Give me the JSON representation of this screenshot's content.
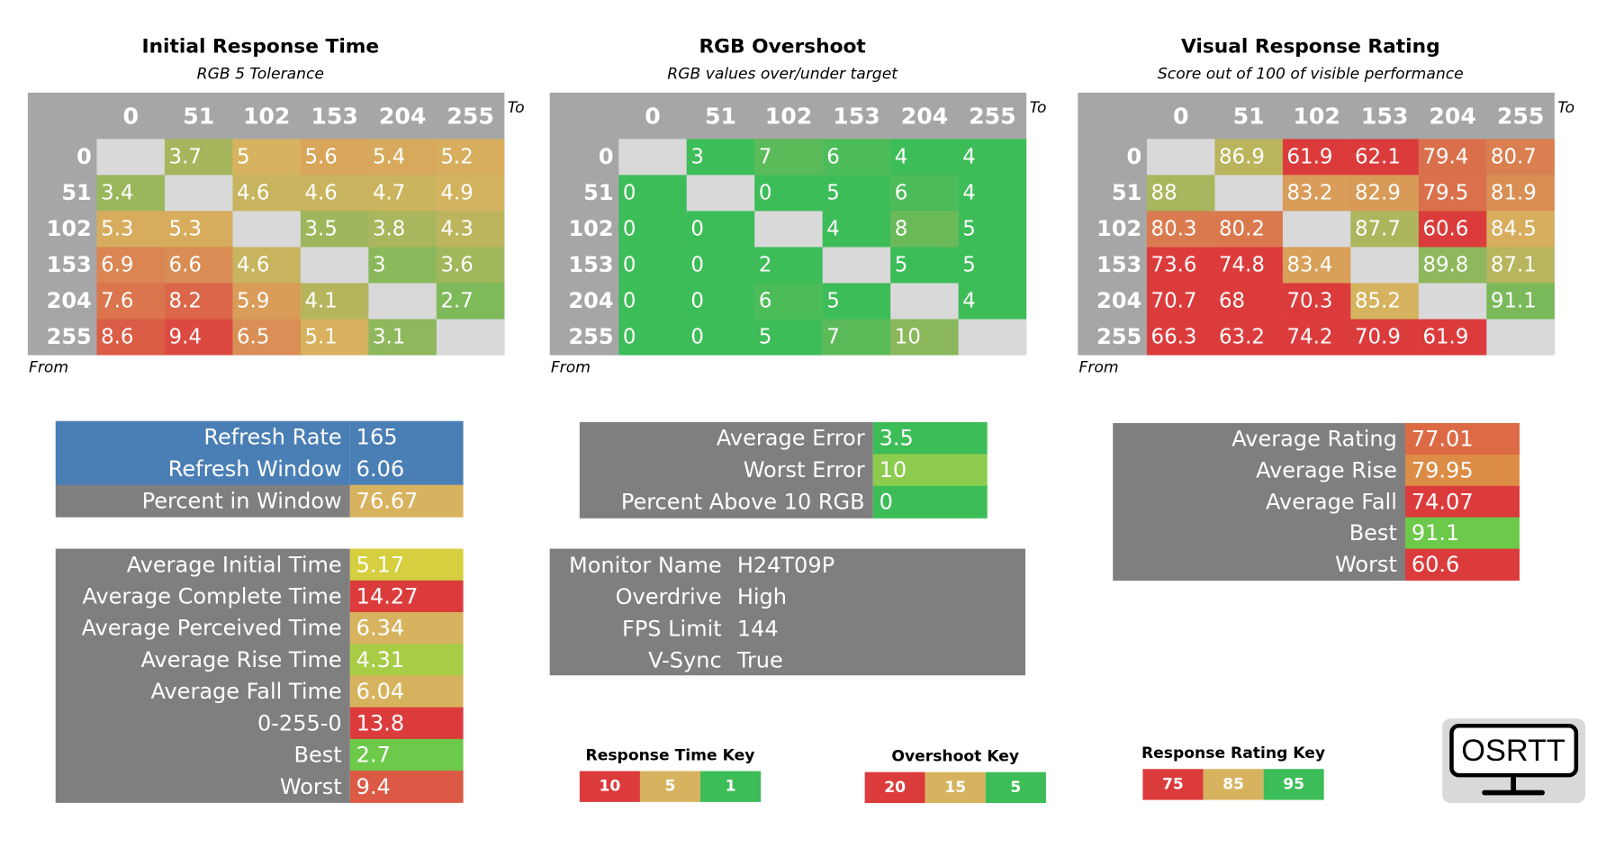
{
  "heatmaps": [
    {
      "title": "Initial Response Time",
      "subtitle": "RGB 5 Tolerance",
      "to": "To",
      "from": "From",
      "columns": [
        0,
        51,
        102,
        153,
        204,
        255
      ],
      "rows": [
        0,
        51,
        102,
        153,
        204,
        255
      ],
      "cells": [
        [
          null,
          3.7,
          5,
          5.6,
          5.4,
          5.2
        ],
        [
          3.4,
          null,
          4.6,
          4.6,
          4.7,
          4.9
        ],
        [
          5.3,
          5.3,
          null,
          3.5,
          3.8,
          4.3
        ],
        [
          6.9,
          6.6,
          4.6,
          null,
          3,
          3.6
        ],
        [
          7.6,
          8.2,
          5.9,
          4.1,
          null,
          2.7
        ],
        [
          8.6,
          9.4,
          6.5,
          5.1,
          3.1,
          null
        ]
      ],
      "key": {
        "title": "Response Time Key",
        "items": [
          {
            "value": 10,
            "color": "#dc3b3c"
          },
          {
            "value": 5,
            "color": "#d8b35f"
          },
          {
            "value": 1,
            "color": "#3cbd57"
          }
        ]
      }
    },
    {
      "title": "RGB Overshoot",
      "subtitle": "RGB values over/under target",
      "to": "To",
      "from": "From",
      "columns": [
        0,
        51,
        102,
        153,
        204,
        255
      ],
      "rows": [
        0,
        51,
        102,
        153,
        204,
        255
      ],
      "cells": [
        [
          null,
          3,
          7,
          6,
          4,
          4
        ],
        [
          0,
          null,
          0,
          5,
          6,
          4
        ],
        [
          0,
          0,
          null,
          4,
          8,
          5
        ],
        [
          0,
          0,
          2,
          null,
          5,
          5
        ],
        [
          0,
          0,
          6,
          5,
          null,
          4
        ],
        [
          0,
          0,
          5,
          7,
          10,
          null
        ]
      ],
      "key": {
        "title": "Overshoot Key",
        "items": [
          {
            "value": 20,
            "color": "#dc3b3c"
          },
          {
            "value": 15,
            "color": "#d8b35f"
          },
          {
            "value": 5,
            "color": "#3cbd57"
          }
        ]
      }
    },
    {
      "title": "Visual Response Rating",
      "subtitle": "Score out of 100 of visible performance",
      "to": "To",
      "from": "From",
      "columns": [
        0,
        51,
        102,
        153,
        204,
        255
      ],
      "rows": [
        0,
        51,
        102,
        153,
        204,
        255
      ],
      "cells": [
        [
          null,
          86.9,
          61.9,
          62.1,
          79.4,
          80.7
        ],
        [
          88,
          null,
          83.2,
          82.9,
          79.5,
          81.9
        ],
        [
          80.3,
          80.2,
          null,
          87.7,
          60.6,
          84.5
        ],
        [
          73.6,
          74.8,
          83.4,
          null,
          89.8,
          87.1
        ],
        [
          70.7,
          68,
          70.3,
          85.2,
          null,
          91.1
        ],
        [
          66.3,
          63.2,
          74.2,
          70.9,
          61.9,
          null
        ]
      ],
      "key": {
        "title": "Response Rating Key",
        "items": [
          {
            "value": 75,
            "color": "#dc3b3c"
          },
          {
            "value": 85,
            "color": "#d8b35f"
          },
          {
            "value": 95,
            "color": "#3cbd57"
          }
        ]
      }
    }
  ],
  "summaries": [
    {
      "rows": [
        {
          "label": "Refresh Rate",
          "value": 165,
          "label_color": "#4a7fb5",
          "color": "#4a7fb5"
        },
        {
          "label": "Refresh Window",
          "value": 6.06,
          "label_color": "#4a7fb5",
          "color": "#4a7fb5"
        },
        {
          "label": "Percent in Window",
          "value": 76.67,
          "label_color": "#7f7f7f",
          "color": "#d8b35f"
        }
      ]
    },
    {
      "rows": [
        {
          "label": "Average Initial Time",
          "value": 5.17,
          "label_color": "#7f7f7f",
          "color": "#d6cf3f"
        },
        {
          "label": "Average Complete Time",
          "value": 14.27,
          "label_color": "#7f7f7f",
          "color": "#dc3b3c"
        },
        {
          "label": "Average Perceived Time",
          "value": 6.34,
          "label_color": "#7f7f7f",
          "color": "#d8b35f"
        },
        {
          "label": "Average Rise Time",
          "value": 4.31,
          "label_color": "#7f7f7f",
          "color": "#a8cc45"
        },
        {
          "label": "Average Fall Time",
          "value": 6.04,
          "label_color": "#7f7f7f",
          "color": "#d8b35f"
        },
        {
          "label": "0-255-0",
          "value": 13.8,
          "label_color": "#7f7f7f",
          "color": "#dc3b3c"
        },
        {
          "label": "Best",
          "value": 2.7,
          "label_color": "#7f7f7f",
          "color": "#6cc94a"
        },
        {
          "label": "Worst",
          "value": 9.4,
          "label_color": "#7f7f7f",
          "color": "#dc5a45"
        }
      ]
    },
    {
      "rows": [
        {
          "label": "Average Error",
          "value": 3.5,
          "label_color": "#7f7f7f",
          "color": "#3cbd57"
        },
        {
          "label": "Worst Error",
          "value": 10,
          "label_color": "#7f7f7f",
          "color": "#8ccb4d"
        },
        {
          "label": "Percent Above 10 RGB",
          "value": 0,
          "label_color": "#7f7f7f",
          "color": "#3cbd57"
        }
      ]
    },
    {
      "rows": [
        {
          "label": "Average Rating",
          "value": 77.01,
          "label_color": "#7f7f7f",
          "color": "#dc6a45"
        },
        {
          "label": "Average Rise",
          "value": 79.95,
          "label_color": "#7f7f7f",
          "color": "#dc8c45"
        },
        {
          "label": "Average Fall",
          "value": 74.07,
          "label_color": "#7f7f7f",
          "color": "#dc3b3c"
        },
        {
          "label": "Best",
          "value": 91.1,
          "label_color": "#7f7f7f",
          "color": "#6cc94a"
        },
        {
          "label": "Worst",
          "value": 60.6,
          "label_color": "#7f7f7f",
          "color": "#dc3b3c"
        }
      ]
    }
  ],
  "monitor": {
    "rows": [
      {
        "label": "Monitor Name",
        "value": "H24T09P"
      },
      {
        "label": "Overdrive",
        "value": "High"
      },
      {
        "label": "FPS Limit",
        "value": 144
      },
      {
        "label": "V-Sync",
        "value": "True"
      }
    ]
  },
  "logo": "OSRTT"
}
